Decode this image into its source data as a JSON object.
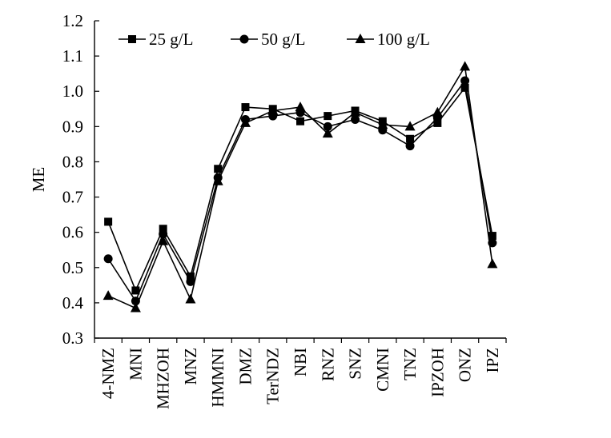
{
  "chart_data": {
    "type": "line",
    "title": "",
    "xlabel": "",
    "ylabel": "ME",
    "ylim": [
      0.3,
      1.2
    ],
    "yticks": [
      "0.3",
      "0.4",
      "0.5",
      "0.6",
      "0.7",
      "0.8",
      "0.9",
      "1.0",
      "1.1",
      "1.2"
    ],
    "grid": false,
    "legend_position": "top",
    "categories": [
      "4-NMZ",
      "MNI",
      "MHZOH",
      "MNZ",
      "HMMNI",
      "DMZ",
      "TerNDZ",
      "NBI",
      "RNZ",
      "SNZ",
      "CMNI",
      "TNZ",
      "IPZOH",
      "ONZ",
      "IPZ"
    ],
    "series": [
      {
        "name": "25 g/L",
        "marker": "square",
        "values": [
          0.63,
          0.435,
          0.61,
          0.475,
          0.78,
          0.955,
          0.95,
          0.915,
          0.93,
          0.945,
          0.915,
          0.865,
          0.91,
          1.01,
          0.59
        ]
      },
      {
        "name": "50 g/L",
        "marker": "circle",
        "values": [
          0.525,
          0.405,
          0.595,
          0.46,
          0.755,
          0.92,
          0.93,
          0.94,
          0.9,
          0.92,
          0.89,
          0.845,
          0.925,
          1.03,
          0.57
        ]
      },
      {
        "name": "100 g/L",
        "marker": "triangle",
        "values": [
          0.42,
          0.385,
          0.575,
          0.41,
          0.745,
          0.91,
          0.945,
          0.955,
          0.88,
          0.94,
          0.905,
          0.9,
          0.94,
          1.07,
          0.51
        ]
      }
    ],
    "colors": {
      "line": "#000000",
      "marker": "#000000"
    }
  }
}
